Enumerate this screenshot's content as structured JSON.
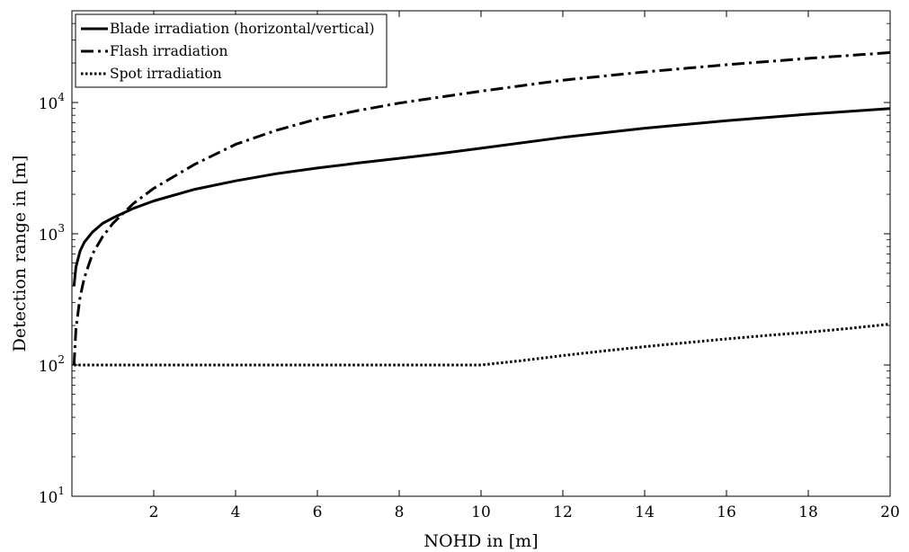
{
  "chart_data": {
    "type": "line",
    "title": "",
    "xlabel": "NOHD in [m]",
    "ylabel": "Detection range in [m]",
    "xlim": [
      0,
      20
    ],
    "ylim": [
      10,
      50000
    ],
    "y_scale": "log",
    "grid": false,
    "legend_position": "top-left",
    "x_ticks": [
      2,
      4,
      6,
      8,
      10,
      12,
      14,
      16,
      18,
      20
    ],
    "x_tick_labels": [
      "2",
      "4",
      "6",
      "8",
      "10",
      "12",
      "14",
      "16",
      "18",
      "20"
    ],
    "y_ticks": [
      10,
      100,
      1000,
      10000
    ],
    "y_tick_labels": [
      {
        "base": "10",
        "exp": "1"
      },
      {
        "base": "10",
        "exp": "2"
      },
      {
        "base": "10",
        "exp": "3"
      },
      {
        "base": "10",
        "exp": "4"
      }
    ],
    "series": [
      {
        "name": "Blade irradiation (horizontal/vertical)",
        "line_style": "solid",
        "color": "#000000",
        "x": [
          0.05,
          0.1,
          0.2,
          0.3,
          0.5,
          0.75,
          1,
          1.5,
          2,
          3,
          4,
          5,
          6,
          7,
          8,
          9,
          10,
          12,
          14,
          16,
          18,
          20
        ],
        "y": [
          400,
          560,
          740,
          860,
          1030,
          1200,
          1320,
          1560,
          1780,
          2180,
          2530,
          2870,
          3170,
          3460,
          3760,
          4090,
          4480,
          5430,
          6370,
          7270,
          8150,
          9000
        ]
      },
      {
        "name": "Flash irradiation",
        "line_style": "dashdot",
        "color": "#000000",
        "x": [
          0.05,
          0.1,
          0.2,
          0.3,
          0.5,
          0.75,
          1,
          1.5,
          2,
          3,
          4,
          5,
          6,
          7,
          8,
          9,
          10,
          12,
          14,
          16,
          18,
          20
        ],
        "y": [
          100,
          190,
          330,
          460,
          700,
          950,
          1200,
          1700,
          2220,
          3380,
          4800,
          6150,
          7500,
          8700,
          9900,
          11000,
          12200,
          14800,
          17100,
          19400,
          21700,
          24000
        ]
      },
      {
        "name": "Spot irradiation",
        "line_style": "dotted",
        "color": "#000000",
        "x": [
          0.05,
          1,
          2,
          4,
          6,
          8,
          10,
          11,
          12,
          13,
          14,
          15,
          16,
          17,
          18,
          19,
          20
        ],
        "y": [
          100,
          100,
          100,
          100,
          100,
          100,
          100,
          108,
          118,
          128,
          138,
          148,
          158,
          168,
          178,
          190,
          205
        ]
      }
    ]
  }
}
